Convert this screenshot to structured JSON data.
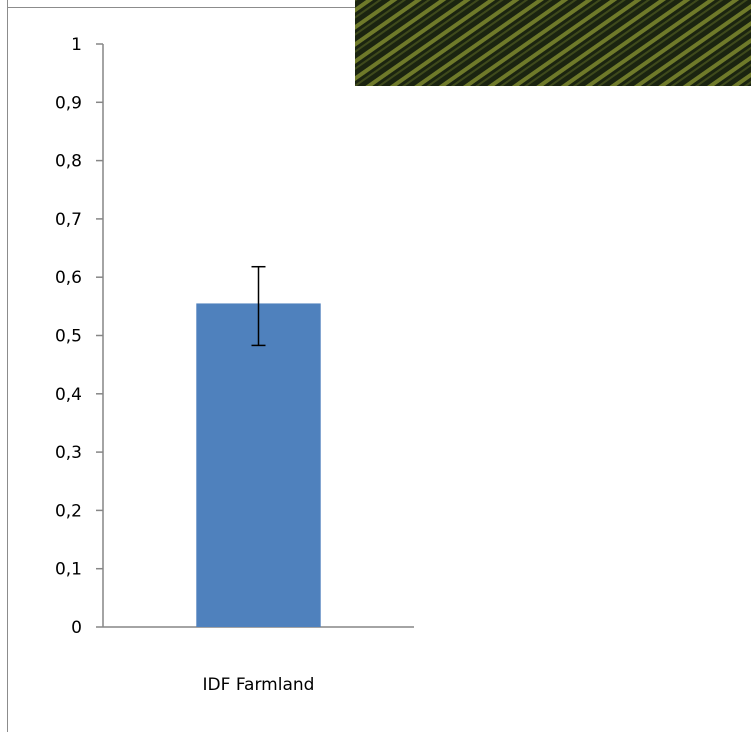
{
  "chart_data": {
    "type": "bar",
    "title": "",
    "xlabel": "",
    "ylabel": "",
    "categories": [
      "IDF Farmland"
    ],
    "values": [
      0.555
    ],
    "error": [
      [
        0.483,
        0.618
      ]
    ],
    "ylim": [
      0,
      1
    ],
    "yticks": [
      0,
      0.1,
      0.2,
      0.3,
      0.4,
      0.5,
      0.6,
      0.7,
      0.8,
      0.9,
      1
    ],
    "ytick_labels": [
      "0",
      "0,1",
      "0,2",
      "0,3",
      "0,4",
      "0,5",
      "0,6",
      "0,7",
      "0,8",
      "0,9",
      "1"
    ],
    "grid": false,
    "legend": "none",
    "bar_color": "#4f81bd"
  },
  "inset_image": {
    "description_icon": "photo-striped-field"
  }
}
